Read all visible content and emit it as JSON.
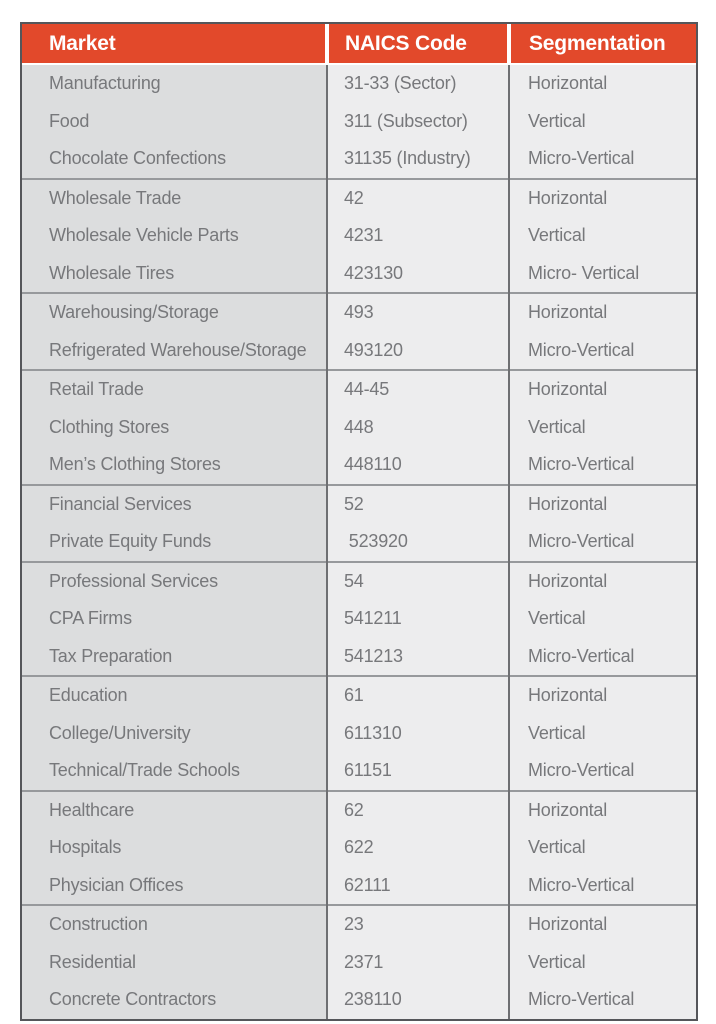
{
  "page": {
    "background": "#FFFFFF"
  },
  "table": {
    "headers": [
      "Market",
      "NAICS Code",
      "Segmentation"
    ],
    "colors": {
      "header_bg": "#E2492B",
      "header_text": "#FFFFFF",
      "market_column_bg": "#DCDDDE",
      "data_column_bg": "#EDEDEE",
      "body_text": "#77787B",
      "outer_border": "#55565A",
      "group_divider": "#97999C",
      "column_divider": "#6E6F72"
    },
    "groups": [
      {
        "rows": [
          {
            "market": "Manufacturing",
            "naics": "31-33 (Sector)",
            "segmentation": "Horizontal"
          },
          {
            "market": "Food",
            "naics": "311 (Subsector)",
            "segmentation": "Vertical"
          },
          {
            "market": "Chocolate Confections",
            "naics": "31135 (Industry)",
            "segmentation": "Micro-Vertical"
          }
        ]
      },
      {
        "rows": [
          {
            "market": "Wholesale Trade",
            "naics": "42",
            "segmentation": "Horizontal"
          },
          {
            "market": "Wholesale Vehicle Parts",
            "naics": "4231",
            "segmentation": "Vertical"
          },
          {
            "market": "Wholesale Tires",
            "naics": "423130",
            "segmentation": "Micro- Vertical"
          }
        ]
      },
      {
        "rows": [
          {
            "market": "Warehousing/Storage",
            "naics": "493",
            "segmentation": "Horizontal"
          },
          {
            "market": "Refrigerated Warehouse/Storage",
            "naics": "493120",
            "segmentation": "Micro-Vertical"
          }
        ]
      },
      {
        "rows": [
          {
            "market": "Retail Trade",
            "naics": "44-45",
            "segmentation": "Horizontal"
          },
          {
            "market": "Clothing Stores",
            "naics": "448",
            "segmentation": "Vertical"
          },
          {
            "market": "Men’s Clothing Stores",
            "naics": "448110",
            "segmentation": "Micro-Vertical"
          }
        ]
      },
      {
        "rows": [
          {
            "market": "Financial Services",
            "naics": "52",
            "segmentation": "Horizontal"
          },
          {
            "market": "Private Equity Funds",
            "naics": " 523920",
            "segmentation": "Micro-Vertical"
          }
        ]
      },
      {
        "rows": [
          {
            "market": "Professional Services",
            "naics": "54",
            "segmentation": "Horizontal"
          },
          {
            "market": "CPA Firms",
            "naics": "541211",
            "segmentation": "Vertical"
          },
          {
            "market": "Tax Preparation",
            "naics": "541213",
            "segmentation": "Micro-Vertical"
          }
        ]
      },
      {
        "rows": [
          {
            "market": "Education",
            "naics": "61",
            "segmentation": "Horizontal"
          },
          {
            "market": "College/University",
            "naics": "611310",
            "segmentation": "Vertical"
          },
          {
            "market": "Technical/Trade Schools",
            "naics": "61151",
            "segmentation": "Micro-Vertical"
          }
        ]
      },
      {
        "rows": [
          {
            "market": "Healthcare",
            "naics": "62",
            "segmentation": "Horizontal"
          },
          {
            "market": "Hospitals",
            "naics": "622",
            "segmentation": "Vertical"
          },
          {
            "market": "Physician Offices",
            "naics": "62111",
            "segmentation": "Micro-Vertical"
          }
        ]
      },
      {
        "rows": [
          {
            "market": "Construction",
            "naics": "23",
            "segmentation": "Horizontal"
          },
          {
            "market": "Residential",
            "naics": "2371",
            "segmentation": "Vertical"
          },
          {
            "market": "Concrete Contractors",
            "naics": "238110",
            "segmentation": "Micro-Vertical"
          }
        ]
      }
    ]
  }
}
